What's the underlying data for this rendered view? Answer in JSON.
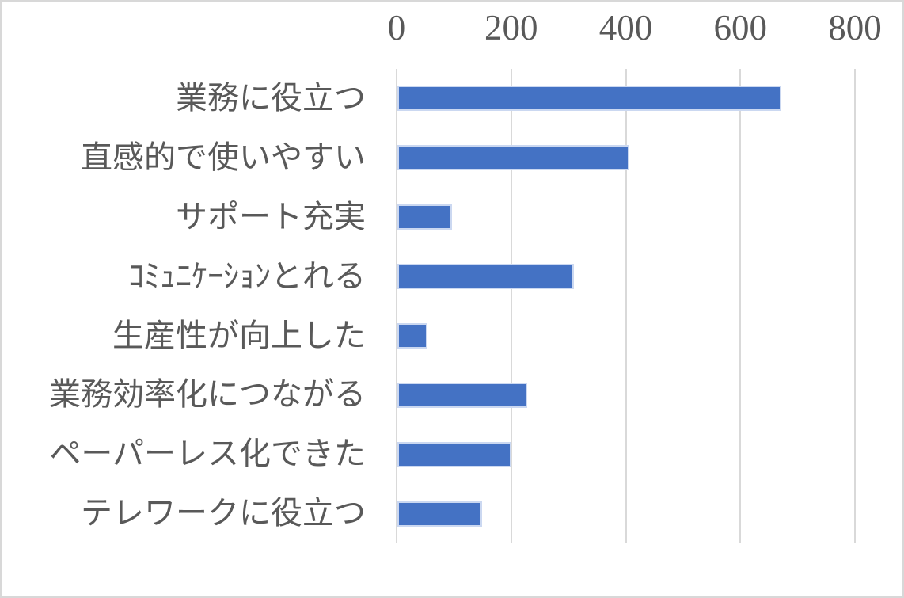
{
  "chart_data": {
    "type": "bar",
    "orientation": "horizontal",
    "title": "",
    "xlabel": "",
    "ylabel": "",
    "categories": [
      "業務に役立つ",
      "直感的で使いやすい",
      "サポート充実",
      "ｺﾐｭﾆｹｰｼｮﾝとれる",
      "生産性が向上した",
      "業務効率化につながる",
      "ペーパーレス化できた",
      "テレワークに役立つ"
    ],
    "values": [
      670,
      405,
      95,
      308,
      53,
      226,
      199,
      148
    ],
    "xlim": [
      0,
      800
    ],
    "xticks": [
      0,
      200,
      400,
      600,
      800
    ],
    "xtick_labels": [
      "0",
      "200",
      "400",
      "600",
      "800"
    ],
    "grid": "vertical-gridlines-on",
    "legend": "none",
    "colors": {
      "bar_fill": "#4472C4",
      "bar_edge": "#CBD8F1",
      "gridline": "#D9D9D9",
      "text": "#595959",
      "background": "#FFFFFF",
      "frame_border": "#D8D8D8"
    }
  }
}
